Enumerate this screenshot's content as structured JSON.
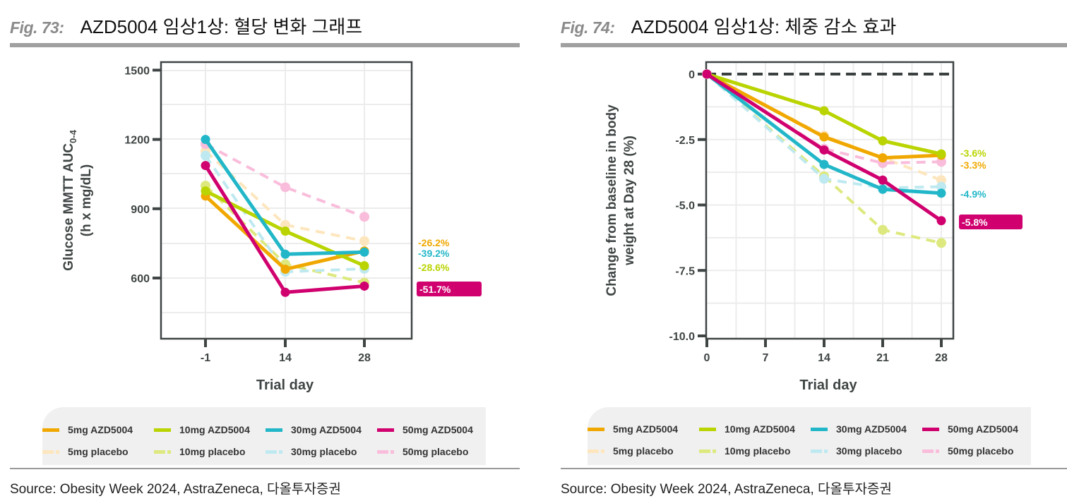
{
  "colors": {
    "5mg AZD5004": "#f0a800",
    "10mg AZD5004": "#b9d400",
    "30mg AZD5004": "#22b7c8",
    "50mg AZD5004": "#d0006f",
    "5mg placebo": "#fde6bd",
    "10mg placebo": "#dde97e",
    "30mg placebo": "#bfe9f0",
    "50mg placebo": "#f9bddb"
  },
  "legend": {
    "row1": [
      "5mg AZD5004",
      "10mg AZD5004",
      "30mg AZD5004",
      "50mg AZD5004"
    ],
    "row2": [
      "5mg placebo",
      "10mg placebo",
      "30mg placebo",
      "50mg placebo"
    ]
  },
  "left": {
    "fig_num": "Fig. 73:",
    "fig_title": "AZD5004 임상1상: 혈당 변화 그래프",
    "source": "Source: Obesity Week 2024, AstraZeneca,  다올투자증권"
  },
  "right": {
    "fig_num": "Fig. 74:",
    "fig_title": "AZD5004 임상1상: 체중 감소 효과",
    "source": "Source: Obesity Week 2024, AstraZeneca,  다올투자증권"
  },
  "chart_data": [
    {
      "type": "line",
      "title": "AZD5004 임상1상: 혈당 변화 그래프",
      "xlabel": "Trial day",
      "ylabel": "Glucose MMTT AUC0-4 (h x mg/dL)",
      "ylabel_line1": "Glucose MMTT AUC",
      "ylabel_sub": "0-4",
      "ylabel_line2": "(h x mg/dL)",
      "x": [
        "-1",
        "14",
        "28"
      ],
      "ylim": [
        338,
        1537
      ],
      "yticks": [
        600,
        900,
        1200,
        1500
      ],
      "grid": true,
      "legend": "bottom",
      "series": [
        {
          "name": "5mg placebo",
          "dashed": true,
          "values": [
            1150,
            830,
            760
          ]
        },
        {
          "name": "10mg placebo",
          "dashed": true,
          "values": [
            1000,
            660,
            580
          ]
        },
        {
          "name": "30mg placebo",
          "dashed": true,
          "values": [
            1130,
            627,
            640
          ]
        },
        {
          "name": "50mg placebo",
          "dashed": true,
          "values": [
            1180,
            993,
            865
          ]
        },
        {
          "name": "5mg AZD5004",
          "dashed": false,
          "values": [
            955,
            638,
            717
          ]
        },
        {
          "name": "10mg AZD5004",
          "dashed": false,
          "values": [
            977,
            803,
            653
          ]
        },
        {
          "name": "30mg AZD5004",
          "dashed": false,
          "values": [
            1200,
            703,
            712
          ]
        },
        {
          "name": "50mg AZD5004",
          "dashed": false,
          "values": [
            1087,
            538,
            565
          ]
        }
      ],
      "annotations": [
        {
          "text": "-26.2%",
          "series": "5mg AZD5004",
          "boxed": false
        },
        {
          "text": "-39.2%",
          "series": "30mg AZD5004",
          "boxed": false
        },
        {
          "text": "-28.6%",
          "series": "10mg AZD5004",
          "boxed": false
        },
        {
          "text": "-51.7%",
          "series": "50mg AZD5004",
          "boxed": true
        }
      ]
    },
    {
      "type": "line",
      "title": "AZD5004 임상1상: 체중 감소 효과",
      "xlabel": "Trial day",
      "ylabel": "Change from baseline in body weight at Day 28 (%)",
      "ylabel_line1": "Change from baseline in body",
      "ylabel_line2": "weight at Day 28 (%)",
      "x": [
        0,
        7,
        14,
        21,
        28
      ],
      "xticks": [
        "0",
        "7",
        "14",
        "21",
        "28"
      ],
      "ylim": [
        -10.0,
        0.5
      ],
      "yticks": [
        "0",
        "-2.5",
        "-5.0",
        "-7.5",
        "-10.0"
      ],
      "ytick_values": [
        0,
        -2.5,
        -5.0,
        -7.5,
        -10.0
      ],
      "reference_line": 0,
      "grid": true,
      "legend": "bottom",
      "series": [
        {
          "name": "5mg placebo",
          "dashed": true,
          "days": [
            0,
            14,
            21,
            28
          ],
          "values": [
            0,
            -2.35,
            -3.2,
            -4.05
          ]
        },
        {
          "name": "10mg placebo",
          "dashed": true,
          "days": [
            0,
            14,
            21,
            28
          ],
          "values": [
            0,
            -3.9,
            -5.95,
            -6.45
          ]
        },
        {
          "name": "30mg placebo",
          "dashed": true,
          "days": [
            0,
            14,
            21,
            28
          ],
          "values": [
            0,
            -4.0,
            -4.35,
            -4.3
          ]
        },
        {
          "name": "50mg placebo",
          "dashed": true,
          "days": [
            0,
            14,
            21,
            28
          ],
          "values": [
            0,
            -2.85,
            -3.4,
            -3.35
          ]
        },
        {
          "name": "5mg AZD5004",
          "dashed": false,
          "days": [
            0,
            14,
            21,
            28
          ],
          "values": [
            0,
            -2.4,
            -3.2,
            -3.1
          ]
        },
        {
          "name": "10mg AZD5004",
          "dashed": false,
          "days": [
            0,
            14,
            21,
            28
          ],
          "values": [
            0,
            -1.4,
            -2.55,
            -3.05
          ]
        },
        {
          "name": "30mg AZD5004",
          "dashed": false,
          "days": [
            0,
            14,
            21,
            28
          ],
          "values": [
            0,
            -3.45,
            -4.4,
            -4.55
          ]
        },
        {
          "name": "50mg AZD5004",
          "dashed": false,
          "days": [
            0,
            14,
            21,
            28
          ],
          "values": [
            0,
            -2.9,
            -4.05,
            -5.6
          ]
        }
      ],
      "annotations": [
        {
          "text": "-3.6%",
          "series": "10mg AZD5004",
          "boxed": false
        },
        {
          "text": "-3.3%",
          "series": "5mg AZD5004",
          "boxed": false
        },
        {
          "text": "-4.9%",
          "series": "30mg AZD5004",
          "boxed": false
        },
        {
          "text": "-5.8%",
          "series": "50mg AZD5004",
          "boxed": true
        }
      ]
    }
  ]
}
